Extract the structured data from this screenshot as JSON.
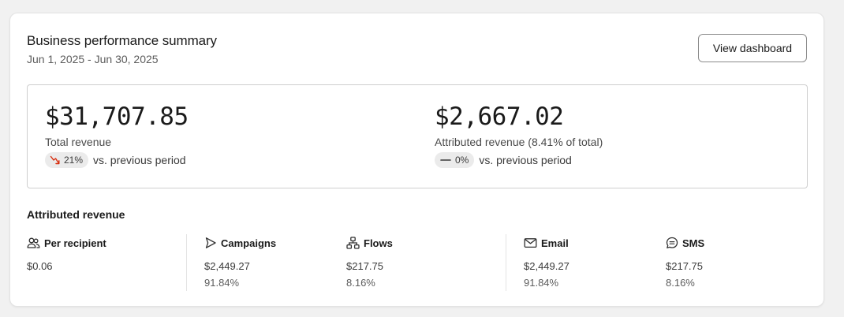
{
  "header": {
    "title": "Business performance summary",
    "date_range": "Jun 1, 2025 - Jun 30, 2025",
    "view_button": "View dashboard"
  },
  "totals": {
    "total_revenue": {
      "value": "$31,707.85",
      "label": "Total revenue",
      "change": "21%",
      "change_direction": "down",
      "change_icon": "trend-down-icon",
      "change_color": "#d72c0d",
      "comparison": "vs. previous period"
    },
    "attributed_revenue": {
      "value": "$2,667.02",
      "label": "Attributed revenue (8.41% of total)",
      "change": "0%",
      "change_direction": "flat",
      "change_icon": "dash-icon",
      "comparison": "vs. previous period"
    }
  },
  "attributed": {
    "title": "Attributed revenue",
    "metrics": [
      {
        "label": "Per recipient",
        "icon": "people-icon",
        "value": "$0.06",
        "percent": ""
      },
      {
        "label": "Campaigns",
        "icon": "send-icon",
        "value": "$2,449.27",
        "percent": "91.84%"
      },
      {
        "label": "Flows",
        "icon": "flow-icon",
        "value": "$217.75",
        "percent": "8.16%"
      },
      {
        "label": "Email",
        "icon": "envelope-icon",
        "value": "$2,449.27",
        "percent": "91.84%"
      },
      {
        "label": "SMS",
        "icon": "chat-bubble-icon",
        "value": "$217.75",
        "percent": "8.16%"
      }
    ]
  }
}
